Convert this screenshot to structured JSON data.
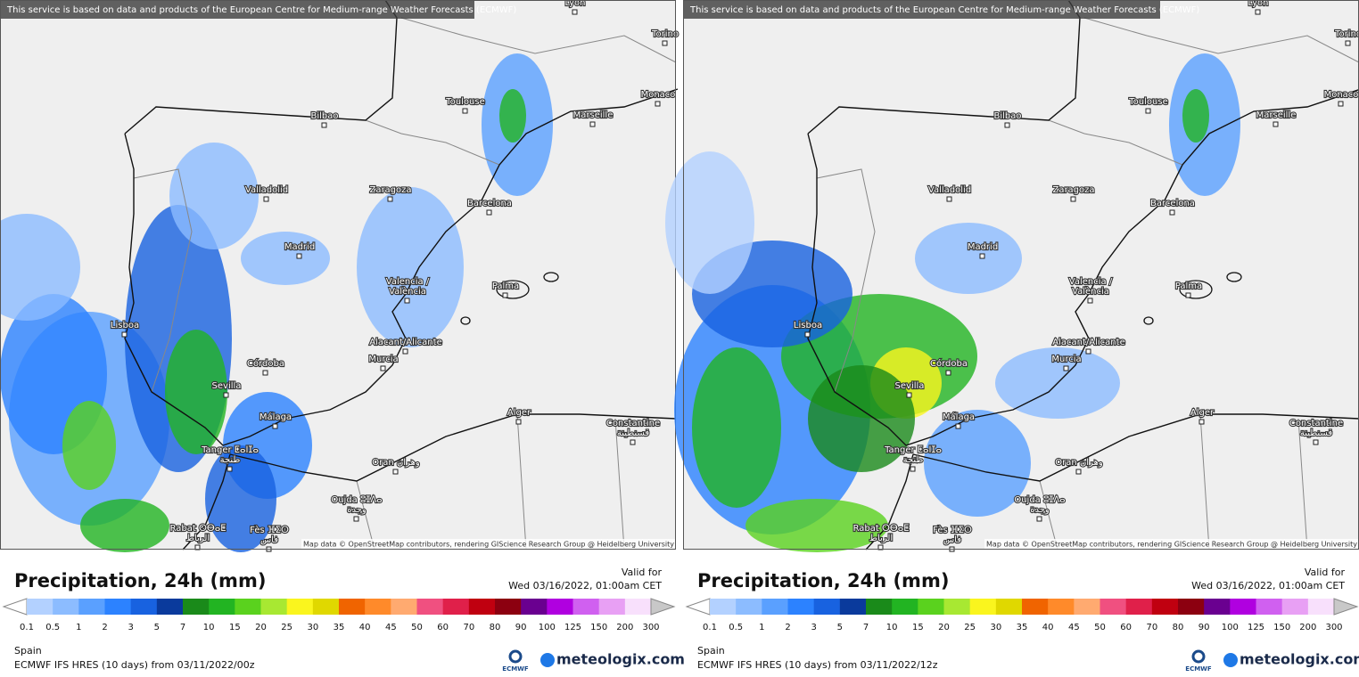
{
  "panels": [
    {
      "notice": "This service is based on data and products of the European Centre for Medium-range Weather Forecasts (ECMWF)",
      "cities": [
        [
          "Toulouse"
        ],
        [
          "Marseille"
        ],
        [
          "Bilbao"
        ],
        [
          "Valladolid"
        ],
        [
          "Zaragoza"
        ],
        [
          "Barcelona"
        ],
        [
          "Madrid"
        ],
        [
          "Valencia /",
          "València"
        ],
        [
          "Palma"
        ],
        [
          "Lisboa"
        ],
        [
          "Córdoba"
        ],
        [
          "Alacant/Alicante"
        ],
        [
          "Murcia"
        ],
        [
          "Sevilla"
        ],
        [
          "Málaga"
        ],
        [
          "Alger"
        ],
        [
          "Constantine",
          "قسنطينة"
        ],
        [
          "Tanger ⵟⴰⵏⵊⴰ",
          "طنجة"
        ],
        [
          "Oran وهران"
        ],
        [
          "Oujda ⵓⵊⴷⴰ",
          "وجدة"
        ],
        [
          "Rabat ⵔⴱⴰⵟ",
          "الرباط"
        ],
        [
          "Fès ⴼⵉⵙ",
          "فاس"
        ],
        [
          "Monaco"
        ],
        [
          "Torino"
        ],
        [
          "Lyon"
        ]
      ],
      "attribution": "Map data © OpenStreetMap contributors, rendering GIScience Research Group @ Heidelberg University",
      "title": "Precipitation, 24h (mm)",
      "valid_for": "Valid for",
      "valid_time": "Wed 03/16/2022, 01:00am CET",
      "legend": {
        "labels": [
          0.1,
          0.5,
          1,
          2,
          3,
          5,
          7,
          10,
          15,
          20,
          25,
          30,
          35,
          40,
          45,
          50,
          60,
          70,
          80,
          90,
          100,
          125,
          150,
          200,
          300
        ],
        "colors": [
          "#b3d1ff",
          "#8cbcff",
          "#5aa0ff",
          "#2c82ff",
          "#1862e0",
          "#0a3a9c",
          "#1a8a1a",
          "#22b422",
          "#5ad21e",
          "#a8e832",
          "#faf51e",
          "#e0d800",
          "#f06400",
          "#ff8a2a",
          "#ffaa70",
          "#f05080",
          "#e0204a",
          "#c00010",
          "#8c0010",
          "#6a0090",
          "#b000e0",
          "#d060f0",
          "#e8a0f4",
          "#f8e0fc",
          "#c8c8c8"
        ]
      },
      "region": "Spain",
      "model_run": "ECMWF IFS HRES (10 days) from 03/11/2022/00z",
      "logo_small": "ECMWF",
      "logo": "meteologix.com"
    },
    {
      "notice": "This service is based on data and products of the European Centre for Medium-range Weather Forecasts (ECMWF)",
      "cities": [
        [
          "Toulouse"
        ],
        [
          "Marseille"
        ],
        [
          "Bilbao"
        ],
        [
          "Valladolid"
        ],
        [
          "Zaragoza"
        ],
        [
          "Barcelona"
        ],
        [
          "Madrid"
        ],
        [
          "Valencia /",
          "València"
        ],
        [
          "Palma"
        ],
        [
          "Lisboa"
        ],
        [
          "Córdoba"
        ],
        [
          "Alacant/Alicante"
        ],
        [
          "Murcia"
        ],
        [
          "Sevilla"
        ],
        [
          "Málaga"
        ],
        [
          "Alger"
        ],
        [
          "Constantine",
          "قسنطينة"
        ],
        [
          "Tanger ⵟⴰⵏⵊⴰ",
          "طنجة"
        ],
        [
          "Oran وهران"
        ],
        [
          "Oujda ⵓⵊⴷⴰ",
          "وجدة"
        ],
        [
          "Rabat ⵔⴱⴰⵟ",
          "الرباط"
        ],
        [
          "Fès ⴼⵉⵙ",
          "فاس"
        ],
        [
          "Monaco"
        ],
        [
          "Torino"
        ],
        [
          "Lyon"
        ]
      ],
      "attribution": "Map data © OpenStreetMap contributors, rendering GIScience Research Group @ Heidelberg University",
      "title": "Precipitation, 24h (mm)",
      "valid_for": "Valid for",
      "valid_time": "Wed 03/16/2022, 01:00am CET",
      "legend": {
        "labels": [
          0.1,
          0.5,
          1,
          2,
          3,
          5,
          7,
          10,
          15,
          20,
          25,
          30,
          35,
          40,
          45,
          50,
          60,
          70,
          80,
          90,
          100,
          125,
          150,
          200,
          300
        ],
        "colors": [
          "#b3d1ff",
          "#8cbcff",
          "#5aa0ff",
          "#2c82ff",
          "#1862e0",
          "#0a3a9c",
          "#1a8a1a",
          "#22b422",
          "#5ad21e",
          "#a8e832",
          "#faf51e",
          "#e0d800",
          "#f06400",
          "#ff8a2a",
          "#ffaa70",
          "#f05080",
          "#e0204a",
          "#c00010",
          "#8c0010",
          "#6a0090",
          "#b000e0",
          "#d060f0",
          "#e8a0f4",
          "#f8e0fc",
          "#c8c8c8"
        ]
      },
      "region": "Spain",
      "model_run": "ECMWF IFS HRES (10 days) from 03/11/2022/12z",
      "logo_small": "ECMWF",
      "logo": "meteologix.com"
    }
  ]
}
